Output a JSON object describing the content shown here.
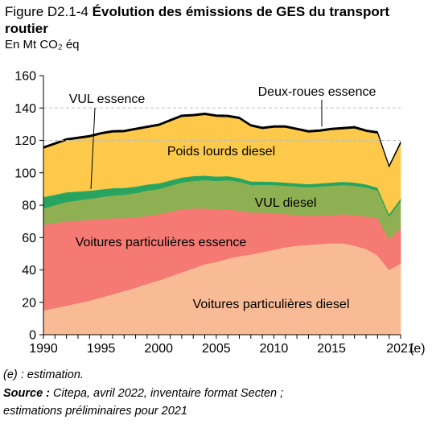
{
  "title": {
    "prefix": "Figure D2.1-4 ",
    "main": "Évolution des émissions de GES du transport routier"
  },
  "unit_label": "En Mt CO₂ éq",
  "footnotes": {
    "estimation": "(e) : estimation.",
    "source_label": "Source :",
    "source_text": " Citepa, avril 2022, inventaire format Secten ;",
    "source_text2": "estimations préliminaires pour 2021"
  },
  "chart_data": {
    "type": "area",
    "stacked": true,
    "x": [
      1990,
      1991,
      1992,
      1993,
      1994,
      1995,
      1996,
      1997,
      1998,
      1999,
      2000,
      2001,
      2002,
      2003,
      2004,
      2005,
      2006,
      2007,
      2008,
      2009,
      2010,
      2011,
      2012,
      2013,
      2014,
      2015,
      2016,
      2017,
      2018,
      2019,
      2020,
      2021
    ],
    "x_ticks": [
      "1990",
      "1995",
      "2000",
      "2005",
      "2010",
      "2015",
      "2021"
    ],
    "x_suffix": "(e)",
    "ylim": [
      0,
      160
    ],
    "y_ticks": [
      0,
      20,
      40,
      60,
      80,
      100,
      120,
      140,
      160
    ],
    "gridlines": [
      140,
      120
    ],
    "series": [
      {
        "name": "Voitures particulières diesel",
        "color": "#f9bb96",
        "values": [
          15,
          16.5,
          18,
          19.5,
          21,
          23,
          25,
          27,
          29,
          31.5,
          33.5,
          36,
          38.5,
          41,
          43.5,
          45,
          47,
          48.5,
          49.5,
          51,
          52.5,
          54,
          55,
          55.5,
          56,
          56.5,
          56.5,
          55,
          53,
          49,
          40,
          44
        ]
      },
      {
        "name": "Voitures particulières essence",
        "color": "#f47a73",
        "values": [
          53,
          52.5,
          52,
          51,
          50,
          48.5,
          47,
          45,
          43.5,
          42,
          41,
          40,
          39,
          37,
          34.5,
          32.5,
          30.5,
          28,
          26,
          24.5,
          22.5,
          20.5,
          19,
          18,
          17.5,
          17.5,
          18,
          19,
          20,
          23,
          19,
          22
        ]
      },
      {
        "name": "VUL diesel",
        "color": "#8fb052",
        "values": [
          10,
          11,
          12,
          12.5,
          13,
          13.5,
          14,
          14.5,
          15,
          15.5,
          15.5,
          16,
          16.5,
          17,
          17.5,
          17.5,
          18,
          18,
          17,
          17,
          17.5,
          17.5,
          17.5,
          17.5,
          18,
          18,
          18,
          18,
          18,
          17,
          14,
          16.5
        ]
      },
      {
        "name": "VUL essence",
        "color": "#27a560",
        "values": [
          7,
          6.5,
          6,
          5.5,
          5,
          4.8,
          4.5,
          4.2,
          4,
          3.8,
          3.5,
          3.3,
          3.1,
          3,
          2.8,
          2.7,
          2.5,
          2.3,
          2.2,
          2.1,
          2,
          2,
          2,
          2,
          2,
          2,
          2,
          2,
          1.9,
          1.8,
          1.5,
          1.6
        ]
      },
      {
        "name": "Poids lourds diesel",
        "color": "#fdc94a",
        "values": [
          30,
          31,
          32,
          32.5,
          33,
          34,
          34.5,
          34.5,
          35,
          35,
          35.5,
          36.5,
          37.5,
          37,
          37.5,
          37,
          36.5,
          36.5,
          34,
          32.5,
          33.5,
          34,
          33,
          32,
          32,
          32.5,
          32.5,
          33.5,
          32.5,
          33.5,
          29,
          34
        ]
      },
      {
        "name": "Deux-roues essence",
        "color": "#000000",
        "values": [
          1.2,
          1.2,
          1.2,
          1.2,
          1.2,
          1.2,
          1.2,
          1.2,
          1.2,
          1.2,
          1.2,
          1.2,
          1.2,
          1.2,
          1.2,
          1.2,
          1.2,
          1.2,
          1.2,
          1.2,
          1.2,
          1.2,
          1.2,
          1.2,
          1.2,
          1.2,
          1.2,
          1.2,
          1.2,
          1.2,
          1.0,
          1.2
        ]
      }
    ]
  }
}
